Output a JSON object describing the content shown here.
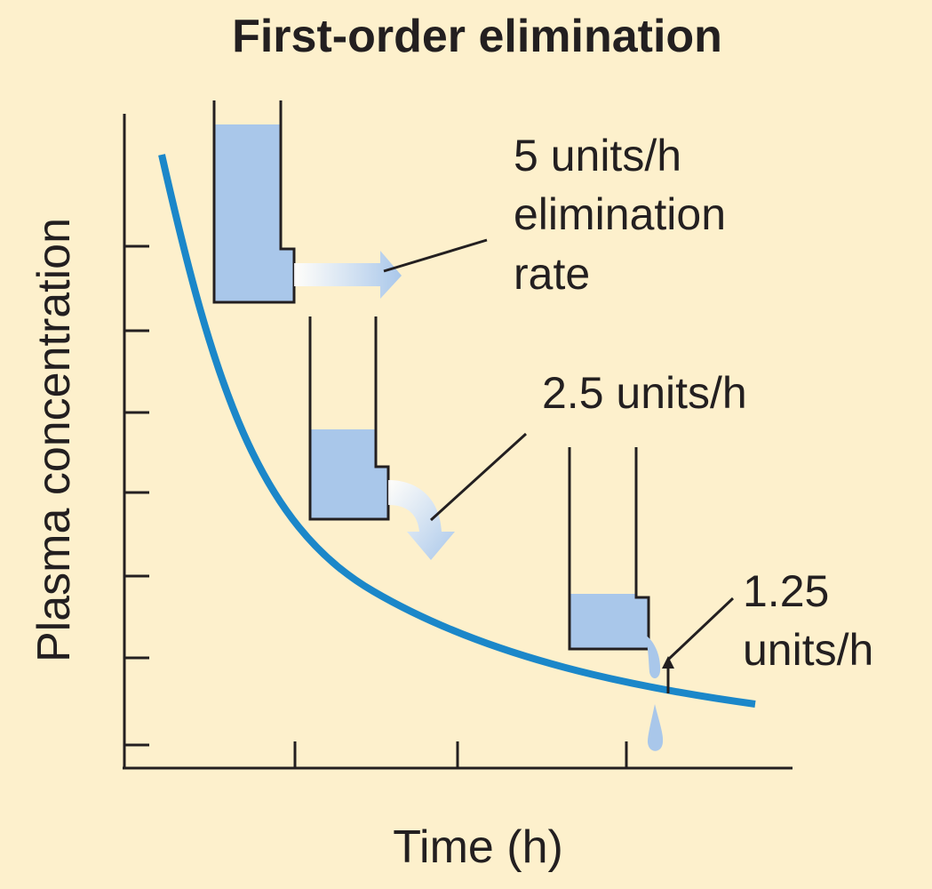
{
  "title": "First-order elimination",
  "x_axis": {
    "label": "Time (h)"
  },
  "y_axis": {
    "label": "Plasma concentration"
  },
  "rates": {
    "first": {
      "line1": "5 units/h",
      "line2": "elimination",
      "line3": "rate"
    },
    "second": {
      "line1": "2.5 units/h"
    },
    "third": {
      "line1": "1.25",
      "line2": "units/h"
    }
  },
  "colors": {
    "background": "#fdf0cc",
    "curve": "#1b87c9",
    "water": "#a9c7ea",
    "ink": "#231f20"
  }
}
